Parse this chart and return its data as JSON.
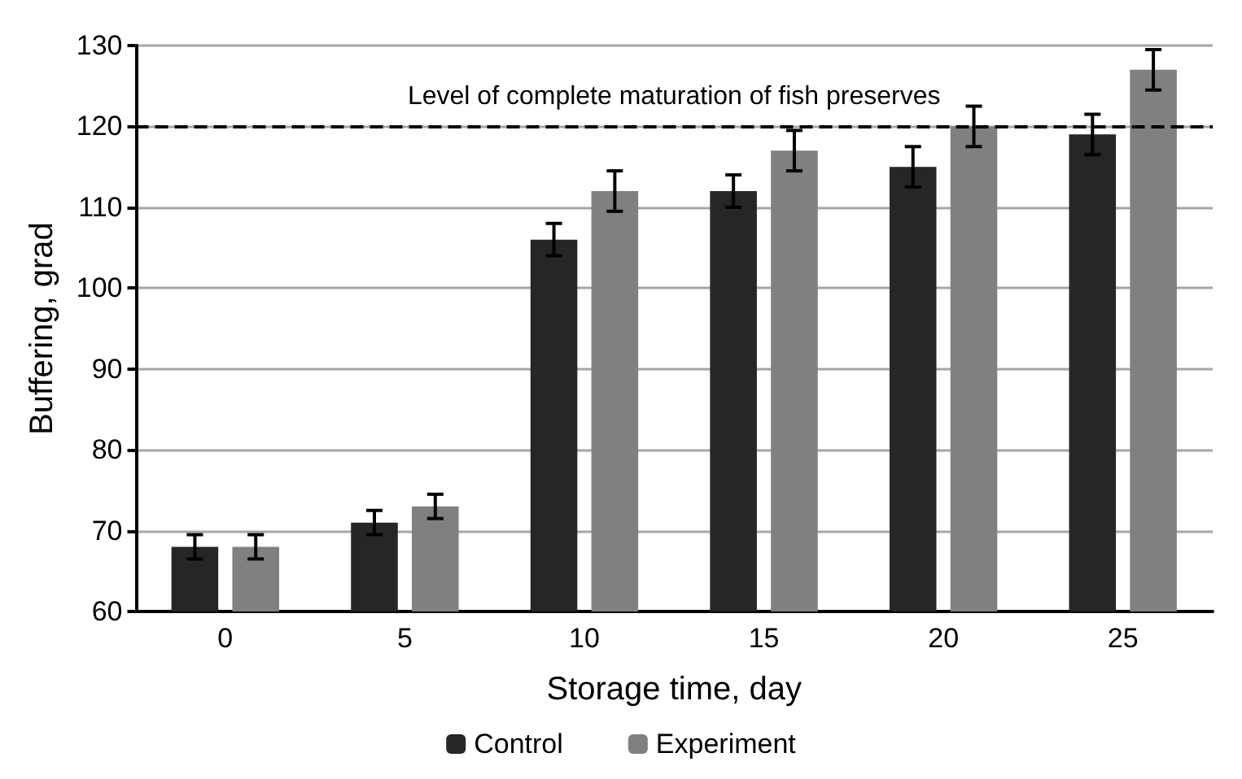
{
  "chart_data": {
    "type": "bar",
    "xlabel": "Storage time, day",
    "ylabel": "Buffering, grad",
    "categories": [
      "0",
      "5",
      "10",
      "15",
      "20",
      "25"
    ],
    "series": [
      {
        "name": "Control",
        "color": "#262626",
        "values": [
          68,
          71,
          106,
          112,
          115,
          119
        ],
        "errors": [
          1.5,
          1.5,
          2,
          2,
          2.5,
          2.5
        ]
      },
      {
        "name": "Experiment",
        "color": "#808080",
        "values": [
          68,
          73,
          112,
          117,
          120,
          127
        ],
        "errors": [
          1.5,
          1.5,
          2.5,
          2.5,
          2.5,
          2.5
        ]
      }
    ],
    "ylim": [
      60,
      130
    ],
    "yticks": [
      60,
      70,
      80,
      90,
      100,
      110,
      120,
      130
    ],
    "grid": "y",
    "legend": "bottom",
    "ref_lines": [
      {
        "axis": "y",
        "value": 120,
        "label": "Level of complete maturation of fish preserves",
        "color": "#000000",
        "line_style": "dashed"
      }
    ]
  }
}
